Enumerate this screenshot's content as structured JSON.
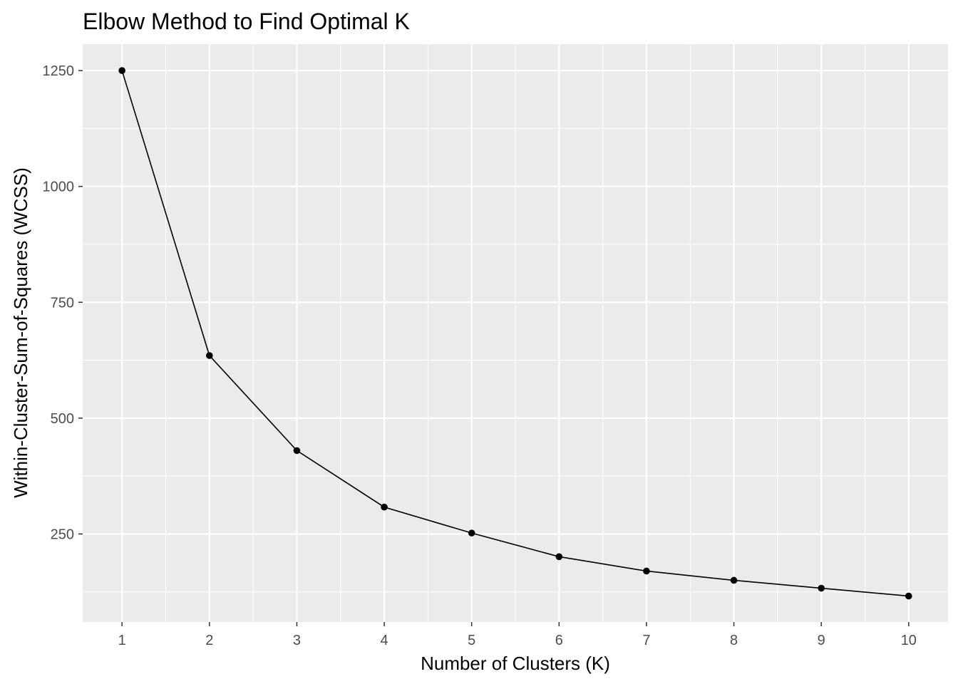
{
  "chart_data": {
    "type": "line",
    "title": "Elbow Method to Find Optimal K",
    "xlabel": "Number of Clusters (K)",
    "ylabel": "Within-Cluster-Sum-of-Squares (WCSS)",
    "x": [
      1,
      2,
      3,
      4,
      5,
      6,
      7,
      8,
      9,
      10
    ],
    "series": [
      {
        "values": [
          1250,
          635,
          430,
          308,
          252,
          201,
          170,
          150,
          133,
          116
        ]
      }
    ],
    "xlim": [
      0.55,
      10.45
    ],
    "ylim": [
      60,
      1307
    ],
    "xticks": [
      1,
      2,
      3,
      4,
      5,
      6,
      7,
      8,
      9,
      10
    ],
    "yticks": [
      250,
      500,
      750,
      1000,
      1250
    ],
    "grid": true,
    "legend": "none",
    "colors": {
      "panel": "#ebebeb",
      "grid": "#ffffff",
      "line": "#000000",
      "point": "#000000",
      "tick_text": "#4d4d4d",
      "tick_mark": "#333333"
    }
  }
}
